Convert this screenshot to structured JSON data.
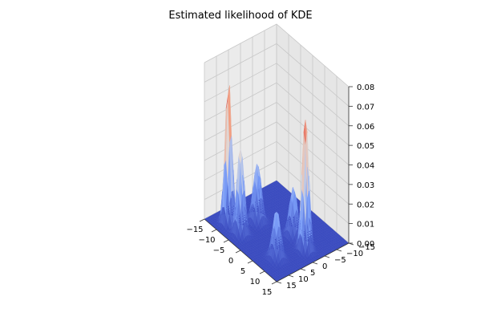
{
  "chart_data": {
    "type": "surface3d",
    "title": "Estimated likelihood of KDE",
    "colormap": "coolwarm",
    "x_ticks": [
      -15,
      -10,
      -5,
      0,
      5,
      10,
      15
    ],
    "y_ticks": [
      -15,
      -10,
      -5,
      0,
      5,
      10,
      15
    ],
    "z_ticks": [
      0.0,
      0.01,
      0.02,
      0.03,
      0.04,
      0.05,
      0.06,
      0.07,
      0.08
    ],
    "z_tick_labels": [
      "0.00",
      "0.01",
      "0.02",
      "0.03",
      "0.04",
      "0.05",
      "0.06",
      "0.07",
      "0.08"
    ],
    "xlim": [
      -15,
      15
    ],
    "ylim": [
      -15,
      15
    ],
    "zlim": [
      0,
      0.08
    ],
    "grid": true,
    "peaks": [
      {
        "x": -10,
        "y": 10,
        "height": 0.075,
        "width": 1.0
      },
      {
        "x": -5,
        "y": 10,
        "height": 0.045,
        "width": 1.1
      },
      {
        "x": -6,
        "y": 2,
        "height": 0.03,
        "width": 1.2
      },
      {
        "x": 8,
        "y": 8,
        "height": 0.025,
        "width": 1.2
      },
      {
        "x": 10,
        "y": -2,
        "height": 0.07,
        "width": 1.0
      },
      {
        "x": 4,
        "y": -3,
        "height": 0.025,
        "width": 1.2
      }
    ]
  }
}
